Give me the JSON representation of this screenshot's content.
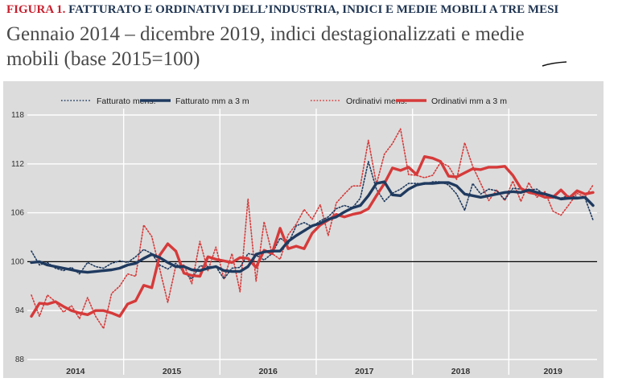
{
  "header": {
    "figure_label": "FIGURA 1.",
    "figure_title": "FATTURATO E ORDINATIVI DELL’INDUSTRIA, INDICI E MEDIE MOBILI A TRE MESI",
    "subtitle_line1": "Gennaio 2014 – dicembre 2019, indici destagionalizzati e medie",
    "subtitle_line2": "mobili (base 2015=100)"
  },
  "colors": {
    "fatturato": "#1f3a5f",
    "ordinativi": "#d63a3a",
    "panel_background": "#dcdcdc",
    "grid": "#ffffff",
    "title_accent": "#c8202f"
  },
  "chart_data": {
    "type": "line",
    "title": "",
    "xlabel": "",
    "ylabel": "",
    "ylim": [
      88,
      118
    ],
    "y_ticks": [
      88,
      94,
      100,
      106,
      112,
      118
    ],
    "x_tick_labels": [
      "2014",
      "2015",
      "2016",
      "2017",
      "2018",
      "2019"
    ],
    "x_range": [
      "2014-01",
      "2019-11"
    ],
    "grid": true,
    "legend_position": "top",
    "reference_line": 100,
    "series": [
      {
        "name": "Fatturato mens.",
        "style": "dotted",
        "color": "#1f3a5f",
        "x": [
          "2014-01",
          "2014-02",
          "2014-03",
          "2014-04",
          "2014-05",
          "2014-06",
          "2014-07",
          "2014-08",
          "2014-09",
          "2014-10",
          "2014-11",
          "2014-12",
          "2015-01",
          "2015-02",
          "2015-03",
          "2015-04",
          "2015-05",
          "2015-06",
          "2015-07",
          "2015-08",
          "2015-09",
          "2015-10",
          "2015-11",
          "2015-12",
          "2016-01",
          "2016-02",
          "2016-03",
          "2016-04",
          "2016-05",
          "2016-06",
          "2016-07",
          "2016-08",
          "2016-09",
          "2016-10",
          "2016-11",
          "2016-12",
          "2017-01",
          "2017-02",
          "2017-03",
          "2017-04",
          "2017-05",
          "2017-06",
          "2017-07",
          "2017-08",
          "2017-09",
          "2017-10",
          "2017-11",
          "2017-12",
          "2018-01",
          "2018-02",
          "2018-03",
          "2018-04",
          "2018-05",
          "2018-06",
          "2018-07",
          "2018-08",
          "2018-09",
          "2018-10",
          "2018-11",
          "2018-12",
          "2019-01",
          "2019-02",
          "2019-03",
          "2019-04",
          "2019-05",
          "2019-06",
          "2019-07",
          "2019-08",
          "2019-09",
          "2019-10",
          "2019-11"
        ],
        "values": [
          101.3,
          99.6,
          99.9,
          99.2,
          98.9,
          99.3,
          98.5,
          99.9,
          99.4,
          99.2,
          99.8,
          100.1,
          99.9,
          100.6,
          101.5,
          101.0,
          99.6,
          99.1,
          99.8,
          98.7,
          97.9,
          99.5,
          99.4,
          99.4,
          97.9,
          99.2,
          99.3,
          101.0,
          100.8,
          100.2,
          101.0,
          102.9,
          102.2,
          104.4,
          104.8,
          104.3,
          105.0,
          105.5,
          106.5,
          106.9,
          106.6,
          107.8,
          112.3,
          108.9,
          107.4,
          108.4,
          108.9,
          109.6,
          109.6,
          109.5,
          109.8,
          109.8,
          109.4,
          108.3,
          106.3,
          109.6,
          108.3,
          108.9,
          108.7,
          107.6,
          109.0,
          108.9,
          108.8,
          108.9,
          108.2,
          107.8,
          107.8,
          108.1,
          107.9,
          107.8,
          105.1
        ]
      },
      {
        "name": "Fatturato mm a 3 m",
        "style": "solid",
        "color": "#1f3a5f",
        "x": [
          "2014-01",
          "2014-02",
          "2014-03",
          "2014-04",
          "2014-05",
          "2014-06",
          "2014-07",
          "2014-08",
          "2014-09",
          "2014-10",
          "2014-11",
          "2014-12",
          "2015-01",
          "2015-02",
          "2015-03",
          "2015-04",
          "2015-05",
          "2015-06",
          "2015-07",
          "2015-08",
          "2015-09",
          "2015-10",
          "2015-11",
          "2015-12",
          "2016-01",
          "2016-02",
          "2016-03",
          "2016-04",
          "2016-05",
          "2016-06",
          "2016-07",
          "2016-08",
          "2016-09",
          "2016-10",
          "2016-11",
          "2016-12",
          "2017-01",
          "2017-02",
          "2017-03",
          "2017-04",
          "2017-05",
          "2017-06",
          "2017-07",
          "2017-08",
          "2017-09",
          "2017-10",
          "2017-11",
          "2017-12",
          "2018-01",
          "2018-02",
          "2018-03",
          "2018-04",
          "2018-05",
          "2018-06",
          "2018-07",
          "2018-08",
          "2018-09",
          "2018-10",
          "2018-11",
          "2018-12",
          "2019-01",
          "2019-02",
          "2019-03",
          "2019-04",
          "2019-05",
          "2019-06",
          "2019-07",
          "2019-08",
          "2019-09",
          "2019-10",
          "2019-11"
        ],
        "values": [
          99.9,
          100.0,
          99.6,
          99.4,
          99.2,
          99.0,
          98.8,
          98.7,
          98.8,
          98.9,
          99.0,
          99.2,
          99.6,
          99.8,
          100.4,
          100.9,
          100.5,
          99.9,
          99.4,
          99.4,
          99.0,
          98.9,
          99.2,
          99.4,
          98.9,
          98.8,
          98.8,
          99.4,
          100.9,
          101.2,
          101.3,
          101.3,
          102.5,
          103.2,
          103.8,
          104.4,
          104.7,
          105.2,
          105.5,
          106.1,
          106.6,
          106.9,
          108.1,
          109.6,
          109.8,
          108.2,
          108.1,
          108.9,
          109.4,
          109.6,
          109.6,
          109.7,
          109.7,
          109.3,
          108.3,
          108.1,
          107.9,
          108.1,
          108.3,
          108.5,
          108.6,
          108.5,
          108.8,
          108.5,
          108.3,
          108.0,
          107.7,
          107.8,
          107.8,
          107.9,
          106.9
        ]
      },
      {
        "name": "Ordinativi mens.",
        "style": "dotted",
        "color": "#d63a3a",
        "x": [
          "2014-01",
          "2014-02",
          "2014-03",
          "2014-04",
          "2014-05",
          "2014-06",
          "2014-07",
          "2014-08",
          "2014-09",
          "2014-10",
          "2014-11",
          "2014-12",
          "2015-01",
          "2015-02",
          "2015-03",
          "2015-04",
          "2015-05",
          "2015-06",
          "2015-07",
          "2015-08",
          "2015-09",
          "2015-10",
          "2015-11",
          "2015-12",
          "2016-01",
          "2016-02",
          "2016-03",
          "2016-04",
          "2016-05",
          "2016-06",
          "2016-07",
          "2016-08",
          "2016-09",
          "2016-10",
          "2016-11",
          "2016-12",
          "2017-01",
          "2017-02",
          "2017-03",
          "2017-04",
          "2017-05",
          "2017-06",
          "2017-07",
          "2017-08",
          "2017-09",
          "2017-10",
          "2017-11",
          "2017-12",
          "2018-01",
          "2018-02",
          "2018-03",
          "2018-04",
          "2018-05",
          "2018-06",
          "2018-07",
          "2018-08",
          "2018-09",
          "2018-10",
          "2018-11",
          "2018-12",
          "2019-01",
          "2019-02",
          "2019-03",
          "2019-04",
          "2019-05",
          "2019-06",
          "2019-07",
          "2019-08",
          "2019-09",
          "2019-10",
          "2019-11"
        ],
        "values": [
          95.9,
          93.3,
          95.9,
          95.1,
          93.8,
          94.6,
          93.0,
          95.6,
          93.3,
          91.8,
          96.1,
          97.0,
          98.5,
          98.2,
          104.5,
          103.1,
          99.1,
          95.0,
          99.5,
          99.6,
          97.3,
          102.5,
          98.9,
          101.8,
          97.9,
          101.0,
          96.3,
          107.7,
          97.6,
          104.9,
          101.0,
          100.3,
          103.3,
          104.6,
          106.4,
          105.2,
          107.0,
          103.2,
          107.2,
          108.3,
          109.3,
          109.3,
          114.9,
          109.5,
          113.2,
          114.5,
          116.3,
          110.7,
          110.6,
          110.3,
          110.6,
          112.2,
          111.7,
          110.1,
          114.6,
          111.7,
          109.6,
          107.5,
          108.8,
          107.5,
          109.9,
          107.4,
          109.7,
          107.9,
          108.6,
          106.2,
          105.7,
          107.0,
          108.4,
          107.9,
          109.4
        ]
      },
      {
        "name": "Ordinativi mm a 3 m",
        "style": "solid",
        "color": "#d63a3a",
        "x": [
          "2014-01",
          "2014-02",
          "2014-03",
          "2014-04",
          "2014-05",
          "2014-06",
          "2014-07",
          "2014-08",
          "2014-09",
          "2014-10",
          "2014-11",
          "2014-12",
          "2015-01",
          "2015-02",
          "2015-03",
          "2015-04",
          "2015-05",
          "2015-06",
          "2015-07",
          "2015-08",
          "2015-09",
          "2015-10",
          "2015-11",
          "2015-12",
          "2016-01",
          "2016-02",
          "2016-03",
          "2016-04",
          "2016-05",
          "2016-06",
          "2016-07",
          "2016-08",
          "2016-09",
          "2016-10",
          "2016-11",
          "2016-12",
          "2017-01",
          "2017-02",
          "2017-03",
          "2017-04",
          "2017-05",
          "2017-06",
          "2017-07",
          "2017-08",
          "2017-09",
          "2017-10",
          "2017-11",
          "2017-12",
          "2018-01",
          "2018-02",
          "2018-03",
          "2018-04",
          "2018-05",
          "2018-06",
          "2018-07",
          "2018-08",
          "2018-09",
          "2018-10",
          "2018-11",
          "2018-12",
          "2019-01",
          "2019-02",
          "2019-03",
          "2019-04",
          "2019-05",
          "2019-06",
          "2019-07",
          "2019-08",
          "2019-09",
          "2019-10",
          "2019-11"
        ],
        "values": [
          93.3,
          94.9,
          94.8,
          95.1,
          94.5,
          94.0,
          93.7,
          93.5,
          94.0,
          94.0,
          93.7,
          93.3,
          94.8,
          95.2,
          97.1,
          96.8,
          100.8,
          102.2,
          101.3,
          98.6,
          98.3,
          98.2,
          100.6,
          100.3,
          100.1,
          99.9,
          100.5,
          100.4,
          99.3,
          101.4,
          101.0,
          104.1,
          101.6,
          101.9,
          101.6,
          103.5,
          104.5,
          105.1,
          105.8,
          105.5,
          105.8,
          106.0,
          106.5,
          108.1,
          109.6,
          111.5,
          111.2,
          111.6,
          110.7,
          112.9,
          112.7,
          112.3,
          110.5,
          110.4,
          110.9,
          111.4,
          111.3,
          111.6,
          111.6,
          111.7,
          110.6,
          109.0,
          108.5,
          108.3,
          107.9,
          107.9,
          108.8,
          107.8,
          108.7,
          108.3,
          108.5
        ]
      }
    ]
  }
}
